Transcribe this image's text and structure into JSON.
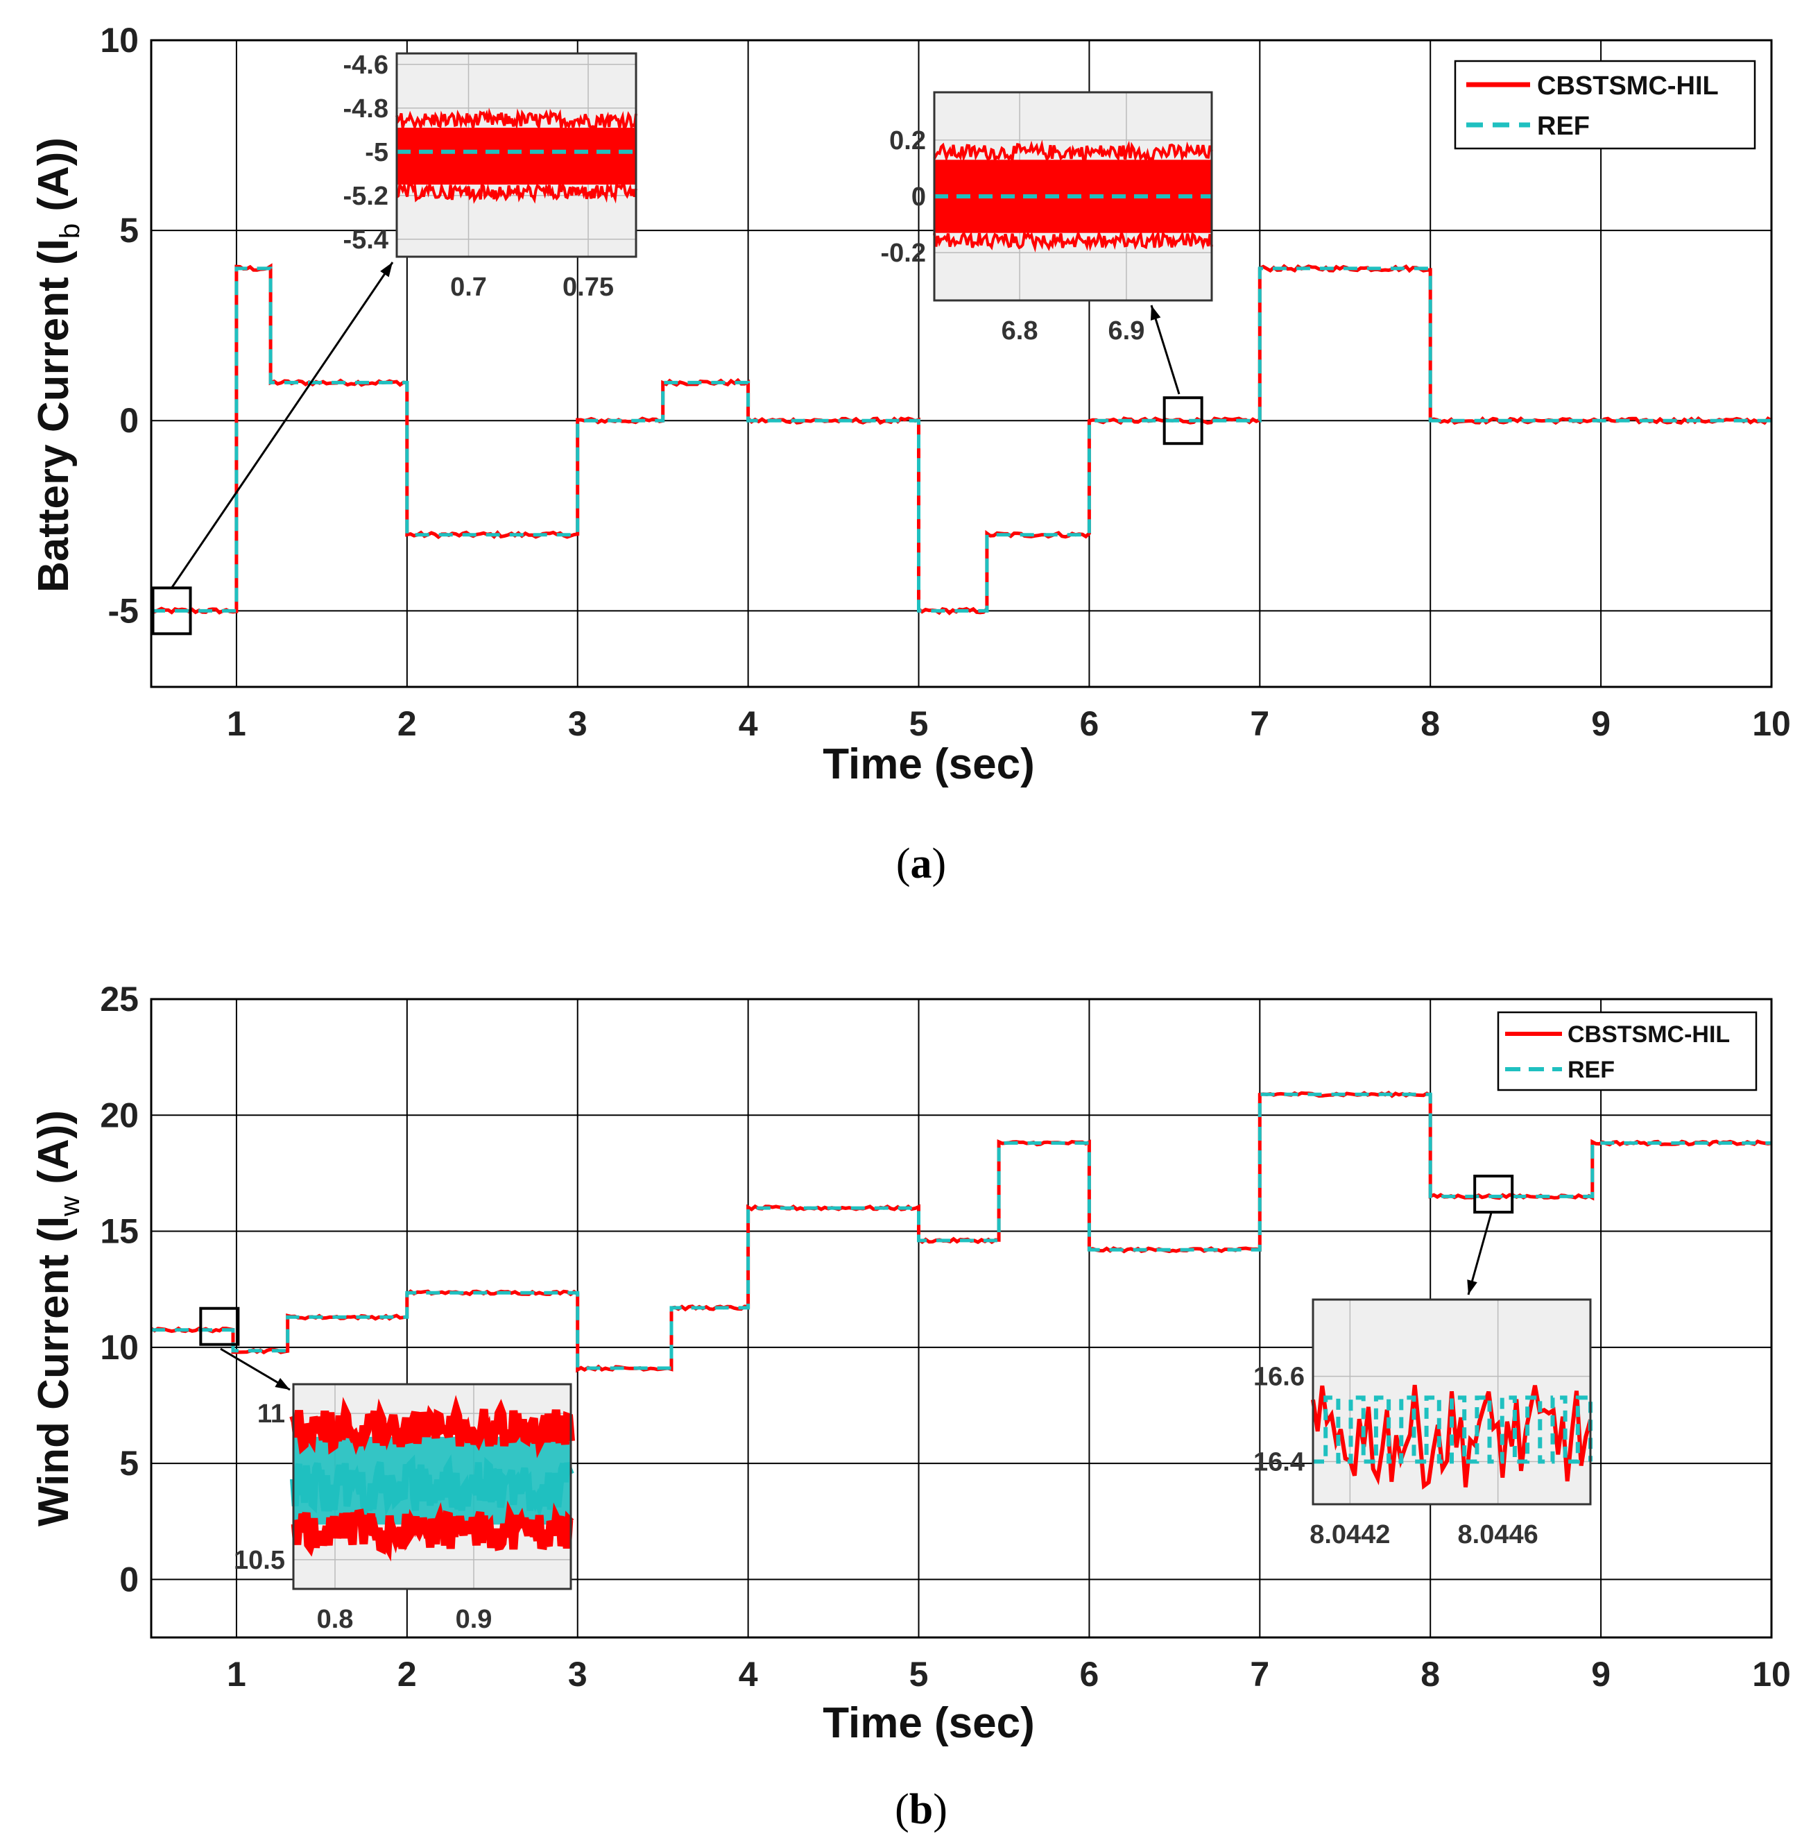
{
  "colors": {
    "measured": "#ff0000",
    "reference": "#1fc0c0",
    "inset_bg": "#efefef",
    "grid": "#000000"
  },
  "chart_data": [
    {
      "type": "line",
      "panel": "a",
      "caption_letter": "a",
      "xlabel": "Time (sec)",
      "ylabel_main": "Battery Current (I",
      "ylabel_sub": "b",
      "ylabel_tail": " (A))",
      "xlim": [
        0.5,
        10
      ],
      "ylim": [
        -7,
        10
      ],
      "xticks": [
        1,
        2,
        3,
        4,
        5,
        6,
        7,
        8,
        9,
        10
      ],
      "yticks": [
        -5,
        0,
        5,
        10
      ],
      "xtick_labels": [
        "1",
        "2",
        "3",
        "4",
        "5",
        "6",
        "7",
        "8",
        "9",
        "10"
      ],
      "ytick_labels": [
        "-5",
        "0",
        "5",
        "10"
      ],
      "legend": [
        "CBSTSMC-HIL",
        "REF"
      ],
      "legend_position": "top-right",
      "noise": 0.06,
      "series": [
        {
          "name": "CBSTSMC-HIL",
          "style": "solid"
        },
        {
          "name": "REF",
          "style": "dashed"
        }
      ],
      "steps": [
        [
          0.5,
          -5
        ],
        [
          1.0,
          4
        ],
        [
          1.2,
          1
        ],
        [
          2.0,
          -3
        ],
        [
          3.0,
          0
        ],
        [
          3.5,
          1
        ],
        [
          4.0,
          0
        ],
        [
          5.0,
          -5
        ],
        [
          5.4,
          -3
        ],
        [
          6.0,
          0
        ],
        [
          7.0,
          4
        ],
        [
          8.0,
          0
        ],
        [
          10.0,
          0
        ]
      ],
      "insets": [
        {
          "target_x": 0.62,
          "target_y": -5,
          "xlim": [
            0.67,
            0.77
          ],
          "ylim": [
            -5.48,
            -4.55
          ],
          "xticks": [
            0.7,
            0.75
          ],
          "yticks": [
            -4.6,
            -4.8,
            -5.0,
            -5.2,
            -5.4
          ],
          "xtick_labels": [
            "0.7",
            "0.75"
          ],
          "ytick_labels": [
            "-4.6",
            "-4.8",
            "-5",
            "-5.2",
            "-5.4"
          ],
          "ref_level": -5,
          "meas_center": -5.02,
          "meas_amp": 0.13
        },
        {
          "target_x": 6.55,
          "target_y": 0,
          "xlim": [
            6.72,
            6.98
          ],
          "ylim": [
            -0.37,
            0.37
          ],
          "xticks": [
            6.8,
            6.9
          ],
          "yticks": [
            0.2,
            0,
            -0.2
          ],
          "xtick_labels": [
            "6.8",
            "6.9"
          ],
          "ytick_labels": [
            "0.2",
            "0",
            "-0.2"
          ],
          "ref_level": 0,
          "meas_center": 0,
          "meas_amp": 0.13
        }
      ]
    },
    {
      "type": "line",
      "panel": "b",
      "caption_letter": "b",
      "xlabel": "Time (sec)",
      "ylabel_main": "Wind Current (I",
      "ylabel_sub": "w",
      "ylabel_tail": " (A))",
      "xlim": [
        0.5,
        10
      ],
      "ylim": [
        -2.5,
        25
      ],
      "xticks": [
        1,
        2,
        3,
        4,
        5,
        6,
        7,
        8,
        9,
        10
      ],
      "yticks": [
        0,
        5,
        10,
        15,
        20,
        25
      ],
      "xtick_labels": [
        "1",
        "2",
        "3",
        "4",
        "5",
        "6",
        "7",
        "8",
        "9",
        "10"
      ],
      "ytick_labels": [
        "0",
        "5",
        "10",
        "15",
        "20",
        "25"
      ],
      "legend": [
        "CBSTSMC-HIL",
        "REF"
      ],
      "legend_position": "top-right",
      "noise": 0.07,
      "series": [
        {
          "name": "CBSTSMC-HIL",
          "style": "solid"
        },
        {
          "name": "REF",
          "style": "dashed"
        }
      ],
      "steps": [
        [
          0.5,
          10.75
        ],
        [
          0.98,
          9.85
        ],
        [
          1.3,
          11.3
        ],
        [
          2.0,
          12.35
        ],
        [
          3.0,
          9.1
        ],
        [
          3.55,
          11.7
        ],
        [
          4.0,
          16.0
        ],
        [
          5.0,
          14.6
        ],
        [
          5.47,
          18.8
        ],
        [
          6.0,
          14.2
        ],
        [
          7.0,
          20.9
        ],
        [
          8.0,
          16.5
        ],
        [
          8.95,
          18.8
        ],
        [
          10.0,
          18.8
        ]
      ],
      "insets": [
        {
          "target_x": 0.9,
          "target_y": 10.9,
          "xlim": [
            0.77,
            0.97
          ],
          "ylim": [
            10.4,
            11.1
          ],
          "xticks": [
            0.8,
            0.9
          ],
          "yticks": [
            11,
            10.5
          ],
          "xtick_labels": [
            "0.8",
            "0.9"
          ],
          "ytick_labels": [
            "11",
            "10.5"
          ],
          "kind": "band"
        },
        {
          "target_x": 8.37,
          "target_y": 16.6,
          "xlim": [
            8.0441,
            8.04485
          ],
          "ylim": [
            16.3,
            16.78
          ],
          "xticks": [
            8.0442,
            8.0446
          ],
          "yticks": [
            16.6,
            16.4
          ],
          "xtick_labels": [
            "8.0442",
            "8.0446"
          ],
          "ytick_labels": [
            "16.6",
            "16.4"
          ],
          "kind": "sparse"
        }
      ]
    }
  ]
}
